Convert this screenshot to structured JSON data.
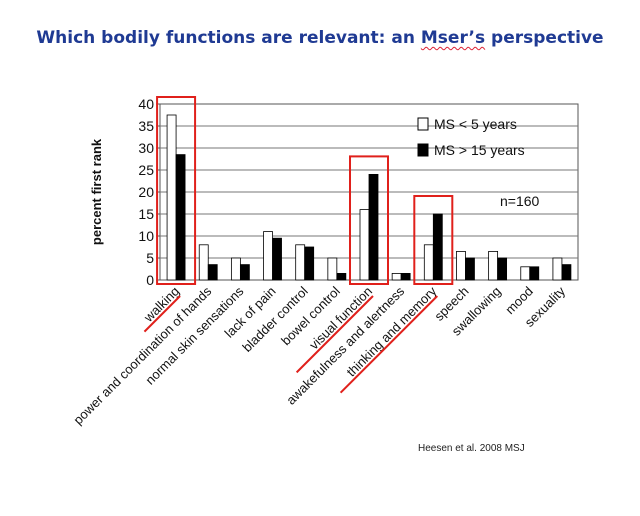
{
  "slide": {
    "title_prefix": "Which bodily functions are relevant: an ",
    "title_highlight": "Mser’s",
    "title_suffix": " perspective",
    "citation": "Heesen et al. 2008 MSJ",
    "n_label": "n=160"
  },
  "chart_data": {
    "type": "bar",
    "title": "",
    "xlabel": "",
    "ylabel": "percent  first rank",
    "ylim": [
      0,
      40
    ],
    "yticks": [
      0,
      5,
      10,
      15,
      20,
      25,
      30,
      35,
      40
    ],
    "grid": true,
    "legend_position": "top-right",
    "categories": [
      "walking",
      "power and coordination of hands",
      "normal skin sensations",
      "lack of pain",
      "bladder control",
      "bowel control",
      "visual function",
      "awakefulness and alertness",
      "thinking and memory",
      "speech",
      "swallowing",
      "mood",
      "sexuality"
    ],
    "series": [
      {
        "name": "MS < 5 years",
        "color": "#ffffff",
        "values": [
          37.5,
          8,
          5,
          11,
          8,
          5,
          16,
          1.5,
          8,
          6.5,
          6.5,
          3,
          5
        ]
      },
      {
        "name": "MS > 15 years",
        "color": "#000000",
        "values": [
          28.5,
          3.5,
          3.5,
          9.5,
          7.5,
          1.5,
          24,
          1.5,
          15,
          5,
          5,
          3,
          3.5
        ]
      }
    ],
    "highlighted_categories": [
      "walking",
      "visual function",
      "thinking and memory"
    ],
    "highlight_color": "#e0201b"
  }
}
